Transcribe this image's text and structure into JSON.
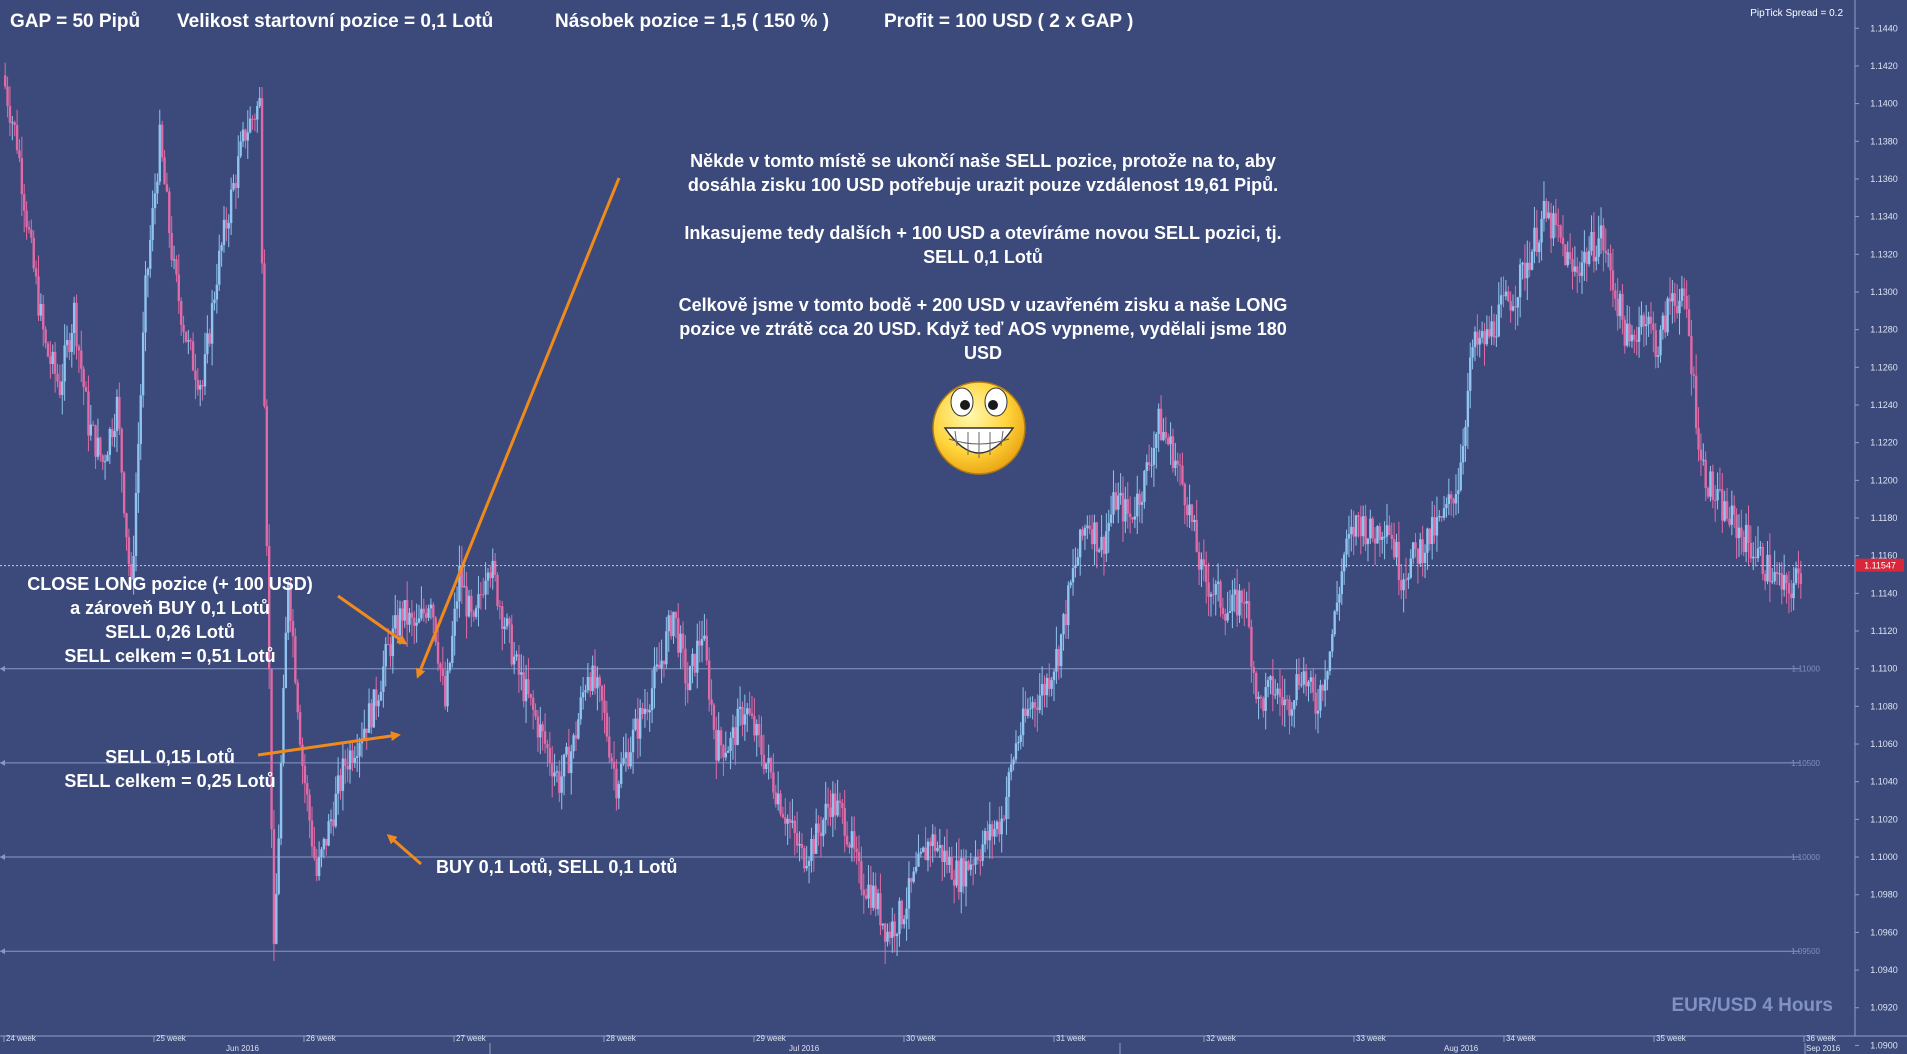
{
  "header": {
    "gap": "GAP = 50 Pipů",
    "start_size": "Velikost startovní pozice = 0,1 Lotů",
    "multiplier": "Násobek pozice = 1,5 ( 150 % )",
    "profit": "Profit = 100 USD ( 2 x GAP )",
    "spread": "PipTick Spread = 0.2"
  },
  "annotations": {
    "main_block": [
      "Někde v tomto místě se ukončí naše SELL pozice, protože na to, aby",
      "dosáhla zisku 100 USD potřebuje urazit pouze vzdálenost 19,61 Pipů.",
      "",
      "Inkasujeme tedy dalších + 100 USD a otevíráme novou SELL pozici, tj.",
      "SELL 0,1 Lotů",
      "",
      "Celkově jsme v tomto bodě + 200 USD v uzavřeném zisku a naše LONG",
      "pozice ve ztrátě cca 20 USD. Když teď AOS vypneme, vydělali jsme 180",
      "USD"
    ],
    "close_long": [
      "CLOSE LONG pozice (+ 100 USD)",
      "a zároveň BUY 0,1 Lotů",
      "SELL 0,26 Lotů",
      "SELL celkem = 0,51 Lotů"
    ],
    "sell_015": [
      "SELL 0,15 Lotů",
      "SELL celkem = 0,25 Lotů"
    ],
    "buy_sell": "BUY 0,1 Lotů, SELL 0,1 Lotů"
  },
  "symbol_label": "EUR/USD 4 Hours",
  "current_price_label": "1.11547",
  "colors": {
    "background": "#3b4a7b",
    "bull": "#8fc3f0",
    "bear": "#e06aa6",
    "arrow": "#f08a1c",
    "gap_line": "#8798c6"
  },
  "chart_data": {
    "type": "candlestick",
    "title": "EUR/USD 4 Hours",
    "ylim": [
      1.0905,
      1.1455
    ],
    "y_ticks": [
      "1.1440",
      "1.1420",
      "1.1400",
      "1.1380",
      "1.1360",
      "1.1340",
      "1.1320",
      "1.1300",
      "1.1280",
      "1.1260",
      "1.1240",
      "1.1220",
      "1.1200",
      "1.1180",
      "1.1160",
      "1.1140",
      "1.1120",
      "1.1100",
      "1.1080",
      "1.1060",
      "1.1040",
      "1.1020",
      "1.1000",
      "1.0980",
      "1.0960",
      "1.0940",
      "1.0920",
      "1.0900"
    ],
    "gap_levels": [
      {
        "label": "1.11000",
        "value": 1.11
      },
      {
        "label": "1.10500",
        "value": 1.105
      },
      {
        "label": "1.10000",
        "value": 1.1
      },
      {
        "label": "1.09500",
        "value": 1.095
      }
    ],
    "current_price": 1.11547,
    "x_week_labels": [
      "24 week",
      "25 week",
      "26 week",
      "27 week",
      "28 week",
      "29 week",
      "30 week",
      "31 week",
      "32 week",
      "33 week",
      "34 week",
      "35 week",
      "36 week"
    ],
    "x_month_labels": [
      "Jun 2016",
      "Jul 2016",
      "Aug 2016",
      "Sep 2016"
    ],
    "close_path": [
      1.1415,
      1.138,
      1.132,
      1.127,
      1.125,
      1.129,
      1.123,
      1.121,
      1.124,
      1.114,
      1.13,
      1.138,
      1.131,
      1.127,
      1.125,
      1.131,
      1.135,
      1.1385,
      1.14,
      1.0945,
      1.115,
      1.105,
      1.099,
      1.102,
      1.105,
      1.1065,
      1.108,
      1.111,
      1.113,
      1.112,
      1.114,
      1.108,
      1.115,
      1.112,
      1.116,
      1.113,
      1.11,
      1.108,
      1.106,
      1.104,
      1.106,
      1.11,
      1.108,
      1.104,
      1.106,
      1.108,
      1.11,
      1.113,
      1.109,
      1.112,
      1.106,
      1.106,
      1.108,
      1.106,
      1.104,
      1.102,
      1.1,
      1.101,
      1.103,
      1.102,
      1.099,
      1.098,
      1.096,
      1.097,
      1.099,
      1.101,
      1.1,
      1.099,
      1.1,
      1.101,
      1.102,
      1.106,
      1.108,
      1.109,
      1.111,
      1.115,
      1.118,
      1.1165,
      1.119,
      1.118,
      1.12,
      1.123,
      1.1215,
      1.119,
      1.115,
      1.114,
      1.113,
      1.114,
      1.108,
      1.109,
      1.108,
      1.11,
      1.108,
      1.111,
      1.116,
      1.118,
      1.117,
      1.118,
      1.115,
      1.116,
      1.117,
      1.118,
      1.12,
      1.127,
      1.1275,
      1.129,
      1.13,
      1.132,
      1.134,
      1.133,
      1.131,
      1.132,
      1.133,
      1.13,
      1.127,
      1.129,
      1.127,
      1.13,
      1.129,
      1.121,
      1.119,
      1.118,
      1.117,
      1.116,
      1.115,
      1.114,
      1.115
    ]
  }
}
